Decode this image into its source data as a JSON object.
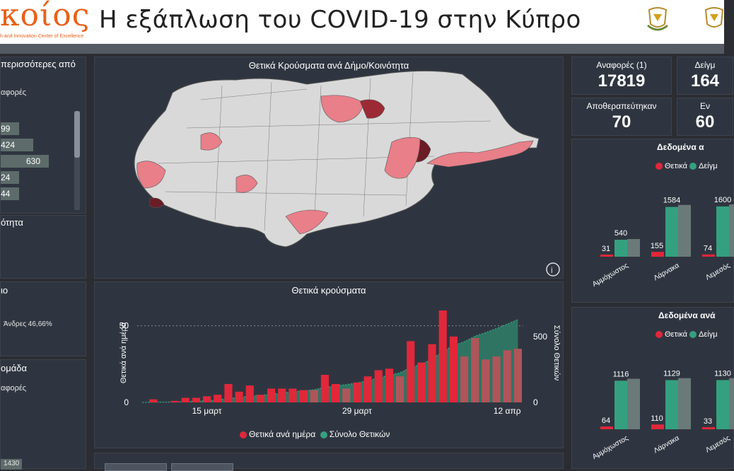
{
  "header": {
    "logo_text": "κοίος",
    "logo_sub": "h and Innovation Center of Excellence",
    "title": "Η εξάπλωση του COVID-19 στην Κύπρο"
  },
  "left": {
    "panel1": {
      "title": "περισσότερες από",
      "subtitle": "αφορές",
      "bars": [
        {
          "label": "99",
          "value": 99
        },
        {
          "label": "424",
          "value": 424
        },
        {
          "label": "630",
          "value": 630
        },
        {
          "label": "24",
          "value": 24
        },
        {
          "label": "44",
          "value": 44
        }
      ]
    },
    "panel2": {
      "title": "ότητα"
    },
    "panel3": {
      "title": "ιο",
      "note": "Άνδρες 46,66%"
    },
    "panel4": {
      "title": "ομάδα",
      "subtitle": "αφορές",
      "bottom_value": "1430"
    }
  },
  "map": {
    "title": "Θετικά Κρούσματα ανά Δήμο/Κοινότητα",
    "info_icon": "info-icon"
  },
  "timeseries": {
    "title": "Θετικά κρούσματα",
    "left_axis_label": "Θετικά ανά ημέρα",
    "right_axis_label": "Σύνολο Θετικών",
    "left_ticks": [
      "50",
      "0"
    ],
    "right_ticks": [
      "500",
      "0"
    ],
    "x_ticks": [
      "15 μαρτ",
      "29 μαρτ",
      "12 απρ"
    ],
    "legend": [
      {
        "label": "Θετικά ανά ημέρα",
        "color": "#e0283a"
      },
      {
        "label": "Σύνολο Θετικών",
        "color": "#35a07f"
      }
    ]
  },
  "chart_data": {
    "type": "bar",
    "title": "Θετικά κρούσματα",
    "ylabel": "Θετικά ανά ημέρα",
    "ylim": [
      0,
      60
    ],
    "y2label": "Σύνολο Θετικών",
    "y2lim": [
      0,
      700
    ],
    "x_start": "2020-03-09",
    "x_end": "2020-04-13",
    "series": [
      {
        "name": "Θετικά ανά ημέρα",
        "kind": "bar",
        "values": [
          0,
          2,
          0,
          1,
          3,
          3,
          4,
          5,
          12,
          7,
          11,
          5,
          9,
          9,
          9,
          8,
          8,
          18,
          12,
          9,
          13,
          17,
          21,
          22,
          17,
          40,
          26,
          38,
          60,
          43,
          30,
          42,
          28,
          30,
          34,
          35
        ]
      },
      {
        "name": "Σύνολο Θετικών",
        "kind": "area",
        "values": [
          0,
          2,
          2,
          3,
          6,
          9,
          13,
          18,
          30,
          37,
          48,
          53,
          62,
          71,
          80,
          88,
          96,
          114,
          126,
          135,
          148,
          165,
          186,
          208,
          225,
          265,
          291,
          329,
          389,
          432,
          462,
          504,
          532,
          562,
          596,
          631
        ]
      }
    ]
  },
  "kpis": [
    {
      "label": "Αναφορές (1)",
      "value": "17819"
    },
    {
      "label": "Δείγμ",
      "value": "164"
    },
    {
      "label": "Αποθεραπεύτηκαν",
      "value": "70"
    },
    {
      "label": "Εν",
      "value": "60"
    }
  ],
  "right_charts": [
    {
      "title": "Δεδομένα α",
      "legend": [
        "Θετικά",
        "Δείγμ"
      ],
      "groups": [
        {
          "name": "Αμμόχωστος",
          "pos": 31,
          "tests": 540
        },
        {
          "name": "Λάρνακα",
          "pos": 155,
          "tests": 1584
        },
        {
          "name": "Λεμεσός",
          "pos": 74,
          "tests": 1600
        }
      ]
    },
    {
      "title": "Δεδομένα ανά",
      "legend": [
        "Θετικά",
        "Δείγμ"
      ],
      "groups": [
        {
          "name": "Αμμόχωστος",
          "pos": 64,
          "tests": 1116
        },
        {
          "name": "Λάρνακα",
          "pos": 110,
          "tests": 1129
        },
        {
          "name": "Λεμεσός",
          "pos": 33,
          "tests": 1130
        }
      ]
    }
  ],
  "colors": {
    "positive": "#e0283a",
    "tests": "#35a07f",
    "total": "#2f7f6a",
    "panel": "#2f3540"
  }
}
